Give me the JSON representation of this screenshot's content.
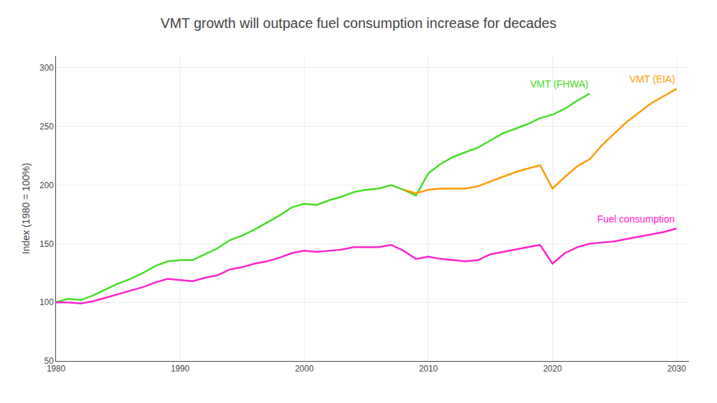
{
  "chart_data": {
    "type": "line",
    "title": "VMT growth will outpace fuel consumption increase for decades",
    "ylabel": "Index (1980 = 100%)",
    "x": [
      1980,
      1981,
      1982,
      1983,
      1984,
      1985,
      1986,
      1987,
      1988,
      1989,
      1990,
      1991,
      1992,
      1993,
      1994,
      1995,
      1996,
      1997,
      1998,
      1999,
      2000,
      2001,
      2002,
      2003,
      2004,
      2005,
      2006,
      2007,
      2008,
      2009,
      2010,
      2011,
      2012,
      2013,
      2014,
      2015,
      2016,
      2017,
      2018,
      2019,
      2020,
      2021,
      2022,
      2023,
      2024,
      2025,
      2026,
      2027,
      2028,
      2029,
      2030
    ],
    "series": [
      {
        "name": "VMT (FHWA)",
        "color": "#44dd22",
        "values": [
          100,
          103,
          102,
          106,
          111,
          116,
          120,
          125,
          131,
          135,
          136,
          136,
          141,
          146,
          153,
          157,
          162,
          168,
          174,
          181,
          184,
          183,
          187,
          190,
          194,
          196,
          197,
          200,
          196,
          191,
          210,
          218,
          224,
          228,
          232,
          238,
          244,
          248,
          252,
          257,
          260,
          265,
          272,
          278,
          null,
          null,
          null,
          null,
          null,
          null,
          null
        ]
      },
      {
        "name": "VMT (EIA)",
        "color": "#ff9900",
        "values": [
          null,
          null,
          null,
          null,
          null,
          null,
          null,
          null,
          null,
          null,
          null,
          null,
          null,
          null,
          null,
          null,
          null,
          null,
          null,
          null,
          null,
          null,
          null,
          null,
          null,
          null,
          null,
          null,
          196,
          193,
          196,
          197,
          197,
          197,
          199,
          203,
          207,
          211,
          214,
          217,
          197,
          207,
          216,
          222,
          234,
          244,
          254,
          262,
          270,
          276,
          282
        ]
      },
      {
        "name": "Fuel consumption",
        "color": "#ff22cc",
        "values": [
          100,
          100,
          99,
          101,
          104,
          107,
          110,
          113,
          117,
          120,
          119,
          118,
          121,
          123,
          128,
          130,
          133,
          135,
          138,
          142,
          144,
          143,
          144,
          145,
          147,
          147,
          147,
          149,
          144,
          137,
          139,
          137,
          136,
          135,
          136,
          141,
          143,
          145,
          147,
          149,
          133,
          142,
          147,
          150,
          151,
          152,
          154,
          156,
          158,
          160,
          163
        ]
      }
    ],
    "xlim": [
      1980,
      2031
    ],
    "ylim": [
      50,
      310
    ],
    "xticks": [
      1980,
      1990,
      2000,
      2010,
      2020,
      2030
    ],
    "yticks": [
      50,
      100,
      150,
      200,
      250,
      300
    ],
    "grid": true
  }
}
